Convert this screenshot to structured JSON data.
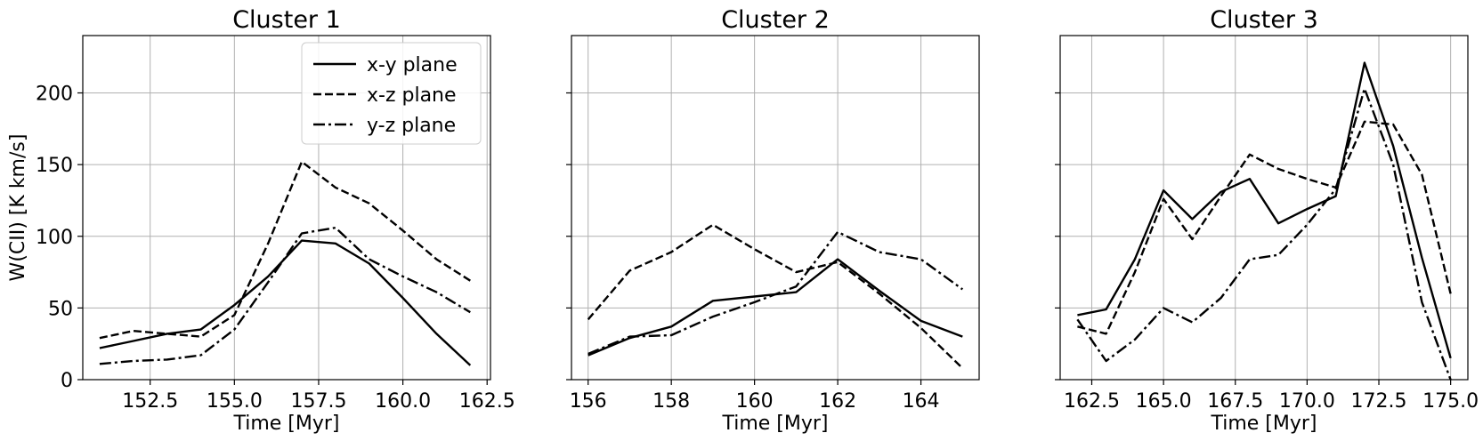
{
  "chart_data": [
    {
      "type": "line",
      "title": "Cluster 1",
      "xlabel": "Time [Myr]",
      "ylabel": "W(CII) [K km/s]",
      "xlim": [
        150.5,
        162.6
      ],
      "ylim": [
        0,
        240
      ],
      "xticks": [
        152.5,
        155.0,
        157.5,
        160.0,
        162.5
      ],
      "xtick_labels": [
        "152.5",
        "155.0",
        "157.5",
        "160.0",
        "162.5"
      ],
      "yticks": [
        0,
        50,
        100,
        150,
        200
      ],
      "ytick_labels": [
        "0",
        "50",
        "100",
        "150",
        "200"
      ],
      "show_ytick_labels": true,
      "grid": true,
      "legend": {
        "placement": "top-right",
        "entries": [
          {
            "label": "x-y plane",
            "style": "solid"
          },
          {
            "label": "x-z plane",
            "style": "dashed"
          },
          {
            "label": "y-z plane",
            "style": "dashdot"
          }
        ]
      },
      "x": [
        151,
        152,
        153,
        154,
        155,
        156,
        157,
        158,
        159,
        160,
        161,
        162
      ],
      "series": [
        {
          "name": "x-y plane",
          "style": "solid",
          "values": [
            22,
            27,
            32,
            35,
            52,
            72,
            97,
            95,
            81,
            57,
            32,
            10
          ]
        },
        {
          "name": "x-z plane",
          "style": "dashed",
          "values": [
            29,
            34,
            32,
            30,
            45,
            95,
            152,
            134,
            123,
            104,
            84,
            69
          ]
        },
        {
          "name": "y-z plane",
          "style": "dashdot",
          "values": [
            11,
            13,
            14,
            17,
            35,
            68,
            102,
            106,
            84,
            72,
            61,
            47
          ]
        }
      ]
    },
    {
      "type": "line",
      "title": "Cluster 2",
      "xlabel": "Time [Myr]",
      "ylabel": "",
      "xlim": [
        155.6,
        165.4
      ],
      "ylim": [
        0,
        240
      ],
      "xticks": [
        156,
        158,
        160,
        162,
        164
      ],
      "xtick_labels": [
        "156",
        "158",
        "160",
        "162",
        "164"
      ],
      "yticks": [
        0,
        50,
        100,
        150,
        200
      ],
      "ytick_labels": [
        "0",
        "50",
        "100",
        "150",
        "200"
      ],
      "show_ytick_labels": false,
      "grid": true,
      "x": [
        156,
        157,
        158,
        159,
        160,
        161,
        162,
        163,
        164,
        165
      ],
      "series": [
        {
          "name": "x-y plane",
          "style": "solid",
          "values": [
            17,
            29,
            37,
            55,
            58,
            61,
            84,
            62,
            41,
            30
          ]
        },
        {
          "name": "x-z plane",
          "style": "dashed",
          "values": [
            42,
            76,
            89,
            108,
            91,
            75,
            82,
            60,
            36,
            8
          ]
        },
        {
          "name": "y-z plane",
          "style": "dashdot",
          "values": [
            18,
            30,
            31,
            44,
            54,
            65,
            103,
            89,
            84,
            63
          ]
        }
      ]
    },
    {
      "type": "line",
      "title": "Cluster 3",
      "xlabel": "Time [Myr]",
      "ylabel": "",
      "xlim": [
        161.4,
        175.6
      ],
      "ylim": [
        0,
        240
      ],
      "xticks": [
        162.5,
        165.0,
        167.5,
        170.0,
        172.5,
        175.0
      ],
      "xtick_labels": [
        "162.5",
        "165.0",
        "167.5",
        "170.0",
        "172.5",
        "175.0"
      ],
      "yticks": [
        0,
        50,
        100,
        150,
        200
      ],
      "ytick_labels": [
        "0",
        "50",
        "100",
        "150",
        "200"
      ],
      "show_ytick_labels": false,
      "grid": true,
      "x": [
        162,
        163,
        164,
        165,
        166,
        167,
        168,
        169,
        170,
        171,
        172,
        173,
        174,
        175
      ],
      "series": [
        {
          "name": "x-y plane",
          "style": "solid",
          "values": [
            45,
            49,
            84,
            132,
            112,
            131,
            140,
            109,
            119,
            128,
            221,
            163,
            85,
            15
          ]
        },
        {
          "name": "x-z plane",
          "style": "dashed",
          "values": [
            37,
            32,
            75,
            126,
            98,
            128,
            157,
            147,
            140,
            134,
            180,
            178,
            143,
            60
          ]
        },
        {
          "name": "y-z plane",
          "style": "dashdot",
          "values": [
            42,
            13,
            28,
            50,
            40,
            57,
            84,
            87,
            108,
            133,
            203,
            150,
            54,
            0
          ]
        }
      ]
    }
  ]
}
